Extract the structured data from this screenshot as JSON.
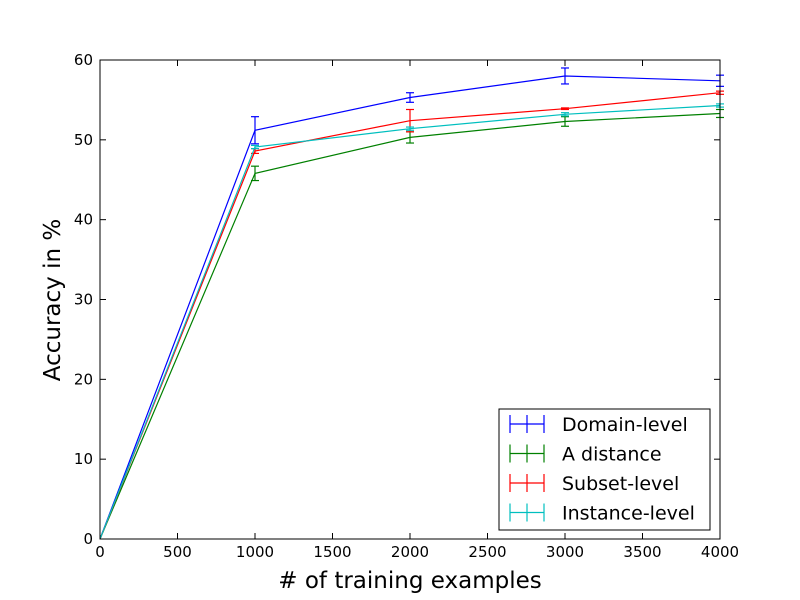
{
  "chart_data": {
    "type": "line",
    "title": "",
    "xlabel": "# of training examples",
    "ylabel": "Accuracy in %",
    "xlim": [
      0,
      4000
    ],
    "ylim": [
      0,
      60
    ],
    "xticks": [
      0,
      500,
      1000,
      1500,
      2000,
      2500,
      3000,
      3500,
      4000
    ],
    "yticks": [
      0,
      10,
      20,
      30,
      40,
      50,
      60
    ],
    "grid": false,
    "legend_position": "bottom-right",
    "x": [
      0,
      1000,
      2000,
      3000,
      4000
    ],
    "series": [
      {
        "name": "Domain-level",
        "color": "#0000ff",
        "values": [
          0,
          51.2,
          55.3,
          58.0,
          57.4
        ],
        "errors": [
          0,
          1.7,
          0.6,
          1.0,
          0.7
        ]
      },
      {
        "name": "A distance",
        "color": "#008000",
        "values": [
          0,
          45.8,
          50.3,
          52.3,
          53.3
        ],
        "errors": [
          0,
          0.9,
          0.7,
          0.6,
          0.5
        ]
      },
      {
        "name": "Subset-level",
        "color": "#ff0000",
        "values": [
          0,
          48.6,
          52.4,
          53.9,
          55.9
        ],
        "errors": [
          0,
          0.3,
          1.4,
          0.1,
          0.2
        ]
      },
      {
        "name": "Instance-level",
        "color": "#00bfbf",
        "values": [
          0,
          49.1,
          51.4,
          53.2,
          54.3
        ],
        "errors": [
          0,
          0.2,
          0.2,
          0.2,
          0.2
        ]
      }
    ]
  }
}
